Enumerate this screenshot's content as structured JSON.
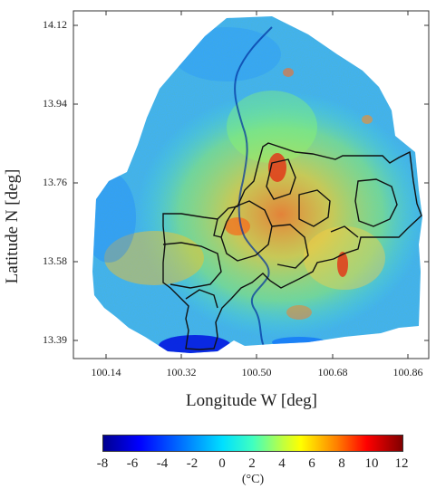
{
  "map": {
    "y_ticks": [
      "14.12",
      "13.94",
      "13.76",
      "13.58",
      "13.39"
    ],
    "x_ticks": [
      "100.14",
      "100.32",
      "100.50",
      "100.68",
      "100.86"
    ],
    "xlabel": "Longitude W [deg]",
    "ylabel": "Latitude N [deg]",
    "colors": {
      "base": "#3fb0ff",
      "cool": "#1a5cff",
      "warm": "#ffd21a",
      "hot": "#e03a1a",
      "boundary": "#111111",
      "river": "#0030a0"
    }
  },
  "colorbar": {
    "ticks": [
      "-8",
      "-6",
      "-4",
      "-2",
      "0",
      "2",
      "4",
      "6",
      "8",
      "10",
      "12"
    ],
    "unit": "(°C)"
  }
}
